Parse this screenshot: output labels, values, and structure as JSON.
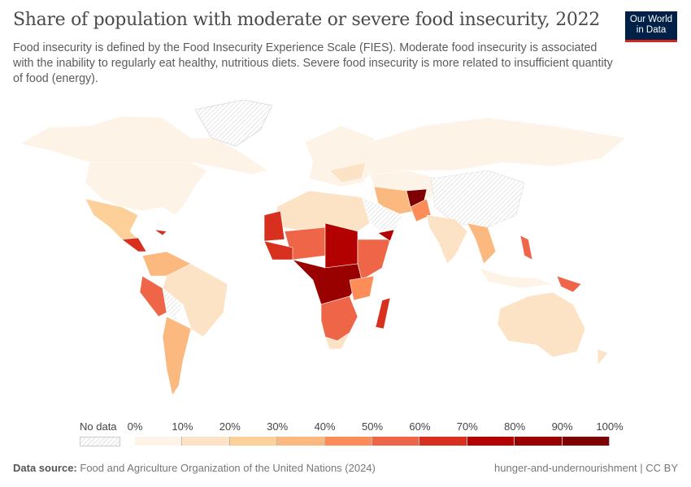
{
  "title": "Share of population with moderate or severe food insecurity, 2022",
  "subtitle": "Food insecurity is defined by the Food Insecurity Experience Scale (FIES). Moderate food insecurity is associated with the inability to regularly eat healthy, nutritious diets. Severe food insecurity is more related to insufficient quantity of food (energy).",
  "logo": {
    "line1": "Our World",
    "line2": "in Data"
  },
  "legend": {
    "no_data": "No data",
    "ticks": [
      "0%",
      "10%",
      "20%",
      "30%",
      "40%",
      "50%",
      "60%",
      "70%",
      "80%",
      "90%",
      "100%"
    ],
    "colors": [
      "#fef3e7",
      "#fde3c5",
      "#fdd09a",
      "#fcb97f",
      "#fc8d59",
      "#ef6548",
      "#d7301f",
      "#b30000",
      "#990000",
      "#7f0000"
    ]
  },
  "footer": {
    "source_label": "Data source:",
    "source": "Food and Agriculture Organization of the United Nations (2024)",
    "right": "hunger-and-undernourishment | CC BY"
  }
}
